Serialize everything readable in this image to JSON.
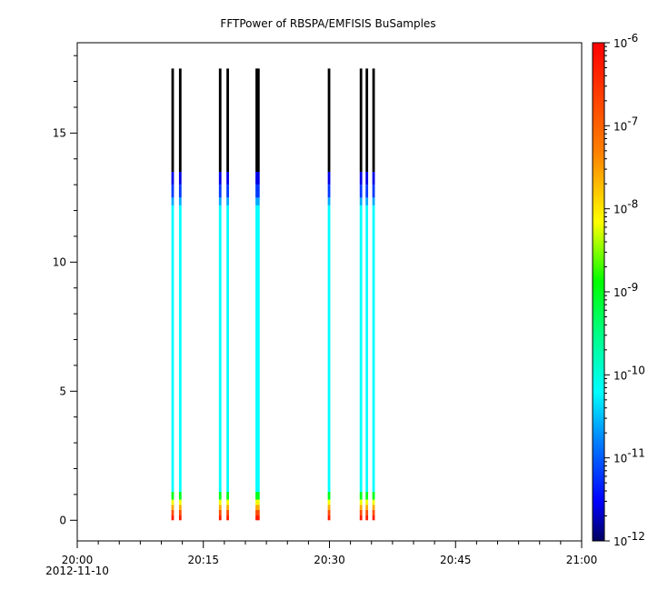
{
  "chart_data": {
    "type": "heatmap",
    "title": "FFTPower of RBSPA/EMFISIS  BuSamples",
    "xlabel": "",
    "ylabel": "",
    "x_axis": {
      "range": [
        "20:00",
        "21:00"
      ],
      "range_minutes": [
        0,
        60
      ],
      "ticks": [
        {
          "minute": 0,
          "label": "20:00"
        },
        {
          "minute": 15,
          "label": "20:15"
        },
        {
          "minute": 30,
          "label": "20:30"
        },
        {
          "minute": 45,
          "label": "20:45"
        },
        {
          "minute": 60,
          "label": "21:00"
        }
      ],
      "date_label": "2012-11-10"
    },
    "y_axis": {
      "range": [
        -0.8,
        18.5
      ],
      "ticks": [
        0,
        5,
        10,
        15
      ],
      "tick_labels": [
        "0",
        "5",
        "10",
        "15"
      ]
    },
    "colorbar": {
      "scale": "log",
      "range": [
        1e-12,
        1e-06
      ],
      "tick_exponents": [
        -12,
        -11,
        -10,
        -9,
        -8,
        -7,
        -6
      ],
      "tick_labels": [
        {
          "base": "10",
          "exp": "-12"
        },
        {
          "base": "10",
          "exp": "-11"
        },
        {
          "base": "10",
          "exp": "-10"
        },
        {
          "base": "10",
          "exp": "-9"
        },
        {
          "base": "10",
          "exp": "-8"
        },
        {
          "base": "10",
          "exp": "-7"
        },
        {
          "base": "10",
          "exp": "-6"
        }
      ],
      "colormap": "rainbow"
    },
    "strips": [
      {
        "minute": 11.35
      },
      {
        "minute": 12.25
      },
      {
        "minute": 17.0
      },
      {
        "minute": 17.9
      },
      {
        "minute": 21.35
      },
      {
        "minute": 21.55
      },
      {
        "minute": 29.95
      },
      {
        "minute": 33.75
      },
      {
        "minute": 34.45
      },
      {
        "minute": 35.25
      }
    ],
    "spectrum": [
      {
        "y_from": 0.0,
        "y_to": 0.2,
        "log_power": -6.3
      },
      {
        "y_from": 0.2,
        "y_to": 0.4,
        "log_power": -6.8
      },
      {
        "y_from": 0.4,
        "y_to": 0.6,
        "log_power": -7.6
      },
      {
        "y_from": 0.6,
        "y_to": 0.8,
        "log_power": -8.2
      },
      {
        "y_from": 0.8,
        "y_to": 1.1,
        "log_power": -9.0
      },
      {
        "y_from": 1.1,
        "y_to": 12.2,
        "log_power": -10.2
      },
      {
        "y_from": 12.2,
        "y_to": 12.5,
        "log_power": -10.6
      },
      {
        "y_from": 12.5,
        "y_to": 13.0,
        "log_power": -11.2
      },
      {
        "y_from": 13.0,
        "y_to": 13.5,
        "log_power": -11.6
      },
      {
        "y_from": 13.5,
        "y_to": 17.5,
        "log_power": -12.0
      }
    ]
  }
}
